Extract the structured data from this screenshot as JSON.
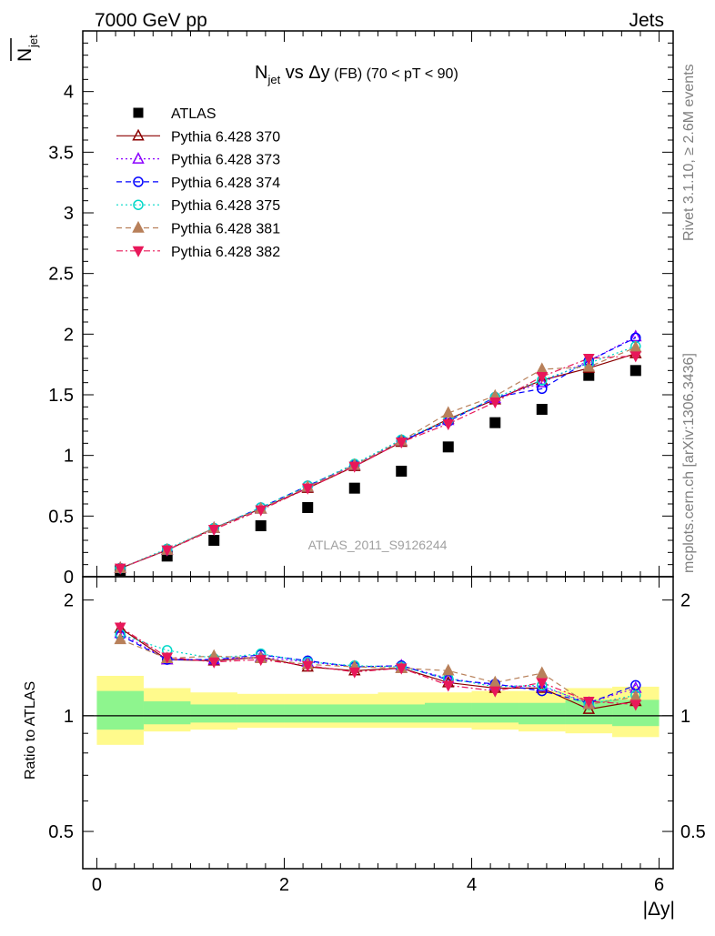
{
  "header": {
    "left": "7000 GeV pp",
    "right": "Jets"
  },
  "side_labels": {
    "rivet": "Rivet 3.1.10, ≥ 2.6M events",
    "mcplots": "mcplots.cern.ch [arXiv:1306.3436]"
  },
  "watermark": "ATLAS_2011_S9126244",
  "title": {
    "n": "N",
    "sub": "jet",
    "vs": " vs Δy",
    "fb": " (FB)",
    "range": " (70 < pT <  90)"
  },
  "axes": {
    "main_ylabel_n": "N",
    "main_ylabel_sub": "jet",
    "ratio_ylabel": "Ratio to ATLAS",
    "xlabel": "|Δy|"
  },
  "colors": {
    "atlas": "#000000",
    "p370": "#8b0000",
    "p373": "#8b00ff",
    "p374": "#0000ff",
    "p375": "#00d8c8",
    "p381": "#b8805a",
    "p382": "#e8185a",
    "band_inner": "#8ef58e",
    "band_outer": "#fffa8c"
  },
  "chart_data": [
    {
      "type": "scatter",
      "panel": "main",
      "ylabel": "N_jet (overline)",
      "xlabel": "|Δy|",
      "xlim": [
        -0.15,
        6.15
      ],
      "ylim": [
        0,
        4.5
      ],
      "yticks": [
        "0",
        "0.5",
        "1",
        "1.5",
        "2",
        "2.5",
        "3",
        "3.5",
        "4"
      ],
      "x": [
        0.25,
        0.75,
        1.25,
        1.75,
        2.25,
        2.75,
        3.25,
        3.75,
        4.25,
        4.75,
        5.25,
        5.75
      ],
      "series": [
        {
          "name": "ATLAS",
          "marker": "square",
          "values": [
            0.05,
            0.17,
            0.3,
            0.42,
            0.57,
            0.73,
            0.87,
            1.07,
            1.27,
            1.38,
            1.66,
            1.7
          ]
        },
        {
          "name": "Pythia 6.428 370",
          "marker": "triangle-open",
          "line": "solid",
          "values": [
            0.07,
            0.22,
            0.4,
            0.56,
            0.73,
            0.91,
            1.11,
            1.3,
            1.46,
            1.62,
            1.72,
            1.84
          ]
        },
        {
          "name": "Pythia 6.428 373",
          "marker": "triangle-open",
          "line": "dotted",
          "values": [
            0.07,
            0.22,
            0.4,
            0.56,
            0.74,
            0.92,
            1.12,
            1.29,
            1.47,
            1.6,
            1.78,
            1.98
          ]
        },
        {
          "name": "Pythia 6.428 374",
          "marker": "circle-open",
          "line": "dashed",
          "values": [
            0.07,
            0.22,
            0.4,
            0.57,
            0.75,
            0.92,
            1.12,
            1.28,
            1.48,
            1.55,
            1.78,
            1.97
          ]
        },
        {
          "name": "Pythia 6.428 375",
          "marker": "circle-open",
          "line": "dotted",
          "values": [
            0.07,
            0.23,
            0.4,
            0.57,
            0.75,
            0.93,
            1.13,
            1.29,
            1.48,
            1.62,
            1.76,
            1.9
          ]
        },
        {
          "name": "Pythia 6.428 381",
          "marker": "triangle-filled",
          "line": "dashed",
          "values": [
            0.07,
            0.22,
            0.4,
            0.56,
            0.74,
            0.92,
            1.12,
            1.35,
            1.49,
            1.71,
            1.73,
            1.89
          ]
        },
        {
          "name": "Pythia 6.428 382",
          "marker": "triangle-down-filled",
          "line": "dashdot",
          "values": [
            0.07,
            0.22,
            0.39,
            0.55,
            0.73,
            0.91,
            1.11,
            1.26,
            1.44,
            1.65,
            1.8,
            1.82
          ]
        }
      ]
    },
    {
      "type": "scatter",
      "panel": "ratio",
      "ylabel": "Ratio to ATLAS",
      "xlabel": "|Δy|",
      "xlim": [
        -0.15,
        6.15
      ],
      "ylim": [
        0.4,
        2.3
      ],
      "ylog": true,
      "yticks": [
        "0.5",
        "1",
        "2"
      ],
      "xticks": [
        "0",
        "2",
        "4",
        "6"
      ],
      "x": [
        0.25,
        0.75,
        1.25,
        1.75,
        2.25,
        2.75,
        3.25,
        3.75,
        4.25,
        4.75,
        5.25,
        5.75
      ],
      "bands": {
        "x_edges": [
          0.0,
          0.5,
          1.0,
          1.5,
          2.0,
          2.5,
          3.0,
          3.5,
          4.0,
          4.5,
          5.0,
          5.5,
          6.0
        ],
        "inner_low": [
          0.92,
          0.95,
          0.96,
          0.96,
          0.96,
          0.96,
          0.96,
          0.96,
          0.96,
          0.95,
          0.95,
          0.94
        ],
        "inner_high": [
          1.16,
          1.09,
          1.07,
          1.07,
          1.07,
          1.07,
          1.07,
          1.08,
          1.08,
          1.08,
          1.1,
          1.1
        ],
        "outer_low": [
          0.84,
          0.91,
          0.92,
          0.93,
          0.93,
          0.93,
          0.93,
          0.93,
          0.92,
          0.91,
          0.9,
          0.88
        ],
        "outer_high": [
          1.27,
          1.18,
          1.15,
          1.14,
          1.14,
          1.14,
          1.15,
          1.15,
          1.16,
          1.16,
          1.18,
          1.19
        ]
      },
      "series": [
        {
          "name": "Pythia 6.428 370",
          "values": [
            1.69,
            1.4,
            1.39,
            1.42,
            1.34,
            1.31,
            1.33,
            1.22,
            1.18,
            1.18,
            1.04,
            1.09
          ]
        },
        {
          "name": "Pythia 6.428 373",
          "values": [
            1.64,
            1.4,
            1.4,
            1.42,
            1.38,
            1.34,
            1.35,
            1.25,
            1.2,
            1.19,
            1.08,
            1.18
          ]
        },
        {
          "name": "Pythia 6.428 374",
          "values": [
            1.62,
            1.4,
            1.4,
            1.44,
            1.39,
            1.34,
            1.35,
            1.24,
            1.21,
            1.16,
            1.08,
            1.2
          ]
        },
        {
          "name": "Pythia 6.428 375",
          "values": [
            1.63,
            1.48,
            1.41,
            1.45,
            1.38,
            1.35,
            1.34,
            1.25,
            1.19,
            1.2,
            1.07,
            1.13
          ]
        },
        {
          "name": "Pythia 6.428 381",
          "values": [
            1.58,
            1.41,
            1.43,
            1.41,
            1.36,
            1.34,
            1.33,
            1.31,
            1.22,
            1.29,
            1.07,
            1.12
          ]
        },
        {
          "name": "Pythia 6.428 382",
          "values": [
            1.7,
            1.42,
            1.38,
            1.4,
            1.35,
            1.3,
            1.33,
            1.2,
            1.16,
            1.22,
            1.09,
            1.07
          ]
        }
      ]
    }
  ]
}
